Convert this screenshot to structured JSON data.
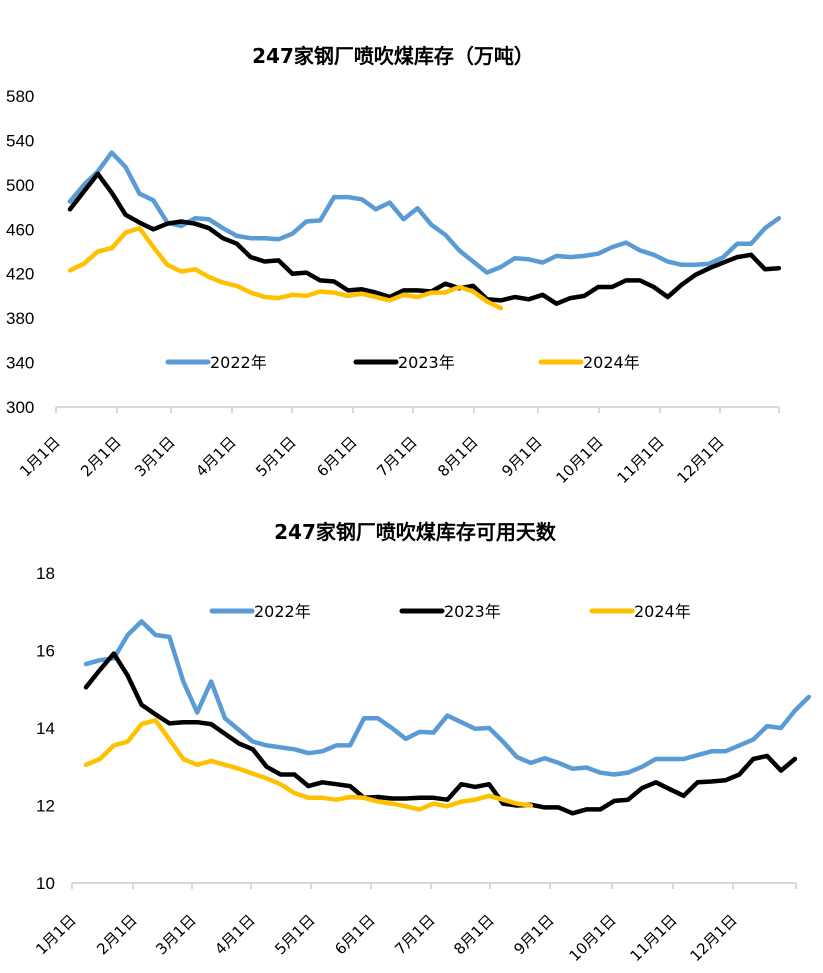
{
  "chart_data": [
    {
      "type": "line",
      "title": "247家钢厂喷吹煤库存（万吨）",
      "xlabel": "",
      "ylabel": "",
      "ylim": [
        300,
        580
      ],
      "yticks": [
        300,
        340,
        380,
        420,
        460,
        500,
        540,
        580
      ],
      "xtick_labels": [
        "1月1日",
        "2月1日",
        "3月1日",
        "4月1日",
        "5月1日",
        "6月1日",
        "7月1日",
        "8月1日",
        "9月1日",
        "10月1日",
        "11月1日",
        "12月1日"
      ],
      "x_unit": "week",
      "grid": false,
      "legend_position": "bottom-inside",
      "series": [
        {
          "name": "2022年",
          "color": "#5B9BD5",
          "values": [
            485,
            500,
            512,
            529,
            516,
            492,
            486,
            466,
            463,
            470,
            469,
            461,
            454,
            452,
            452,
            451,
            456,
            467,
            468,
            489,
            489,
            487,
            478,
            484,
            469,
            479,
            464,
            455,
            441,
            431,
            421,
            426,
            434,
            433,
            430,
            436,
            435,
            436,
            438,
            444,
            448,
            441,
            437,
            431,
            428,
            428,
            429,
            435,
            447,
            447,
            461,
            470
          ]
        },
        {
          "name": "2023年",
          "color": "#000000",
          "values": [
            478,
            494,
            510,
            493,
            473,
            466,
            460,
            465,
            467,
            465,
            461,
            452,
            447,
            435,
            431,
            432,
            420,
            421,
            414,
            413,
            405,
            406,
            403,
            399,
            405,
            405,
            404,
            411,
            407,
            409,
            397,
            396,
            399,
            397,
            401,
            393,
            398,
            400,
            408,
            408,
            414,
            414,
            408,
            399,
            410,
            419,
            425,
            430,
            435,
            437,
            424,
            425
          ]
        },
        {
          "name": "2024年",
          "color": "#FFC000",
          "values": [
            423,
            429,
            440,
            443,
            457,
            461,
            444,
            428,
            422,
            424,
            417,
            412,
            409,
            403,
            399,
            398,
            401,
            400,
            404,
            403,
            400,
            402,
            399,
            396,
            401,
            399,
            403,
            403,
            408,
            404,
            395,
            389
          ]
        }
      ]
    },
    {
      "type": "line",
      "title": "247家钢厂喷吹煤库存可用天数",
      "xlabel": "",
      "ylabel": "",
      "ylim": [
        10,
        18
      ],
      "yticks": [
        10,
        12,
        14,
        16,
        18
      ],
      "xtick_labels": [
        "1月1日",
        "2月1日",
        "3月1日",
        "4月1日",
        "5月1日",
        "6月1日",
        "7月1日",
        "8月1日",
        "9月1日",
        "10月1日",
        "11月1日",
        "12月1日"
      ],
      "x_unit": "week",
      "grid": false,
      "legend_position": "top-inside",
      "series": [
        {
          "name": "2022年",
          "color": "#5B9BD5",
          "values": [
            15.65,
            15.75,
            15.8,
            16.4,
            16.75,
            16.4,
            16.35,
            15.2,
            14.4,
            15.2,
            14.25,
            13.95,
            13.65,
            13.55,
            13.5,
            13.45,
            13.35,
            13.4,
            13.55,
            13.55,
            14.25,
            14.25,
            14.0,
            13.72,
            13.9,
            13.88,
            14.32,
            14.15,
            13.98,
            14.0,
            13.65,
            13.25,
            13.1,
            13.22,
            13.1,
            12.95,
            12.98,
            12.85,
            12.8,
            12.85,
            13.0,
            13.2,
            13.2,
            13.2,
            13.3,
            13.4,
            13.4,
            13.55,
            13.7,
            14.05,
            14.0,
            14.45,
            14.8
          ]
        },
        {
          "name": "2023年",
          "color": "#000000",
          "values": [
            15.05,
            15.5,
            15.92,
            15.35,
            14.6,
            14.35,
            14.12,
            14.15,
            14.15,
            14.1,
            13.85,
            13.6,
            13.45,
            13.0,
            12.8,
            12.8,
            12.5,
            12.6,
            12.55,
            12.5,
            12.2,
            12.22,
            12.18,
            12.18,
            12.2,
            12.2,
            12.15,
            12.55,
            12.48,
            12.55,
            12.05,
            12.0,
            12.02,
            11.95,
            11.95,
            11.8,
            11.9,
            11.9,
            12.12,
            12.15,
            12.45,
            12.6,
            12.42,
            12.25,
            12.6,
            12.62,
            12.65,
            12.8,
            13.2,
            13.28,
            12.9,
            13.2
          ]
        },
        {
          "name": "2024年",
          "color": "#FFC000",
          "values": [
            13.05,
            13.2,
            13.55,
            13.65,
            14.1,
            14.2,
            13.7,
            13.2,
            13.05,
            13.15,
            13.05,
            12.95,
            12.82,
            12.7,
            12.55,
            12.32,
            12.2,
            12.2,
            12.15,
            12.22,
            12.2,
            12.1,
            12.05,
            11.98,
            11.9,
            12.05,
            11.98,
            12.1,
            12.15,
            12.25,
            12.15,
            12.05,
            12.0
          ]
        }
      ]
    }
  ]
}
